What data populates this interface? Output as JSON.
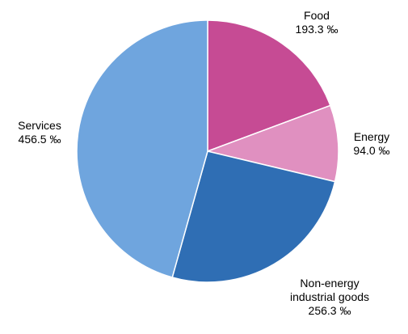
{
  "chart_data": {
    "type": "pie",
    "unit": "‰",
    "slices": [
      {
        "label": [
          "Food"
        ],
        "value": 193.3,
        "value_text": "193.3 ‰",
        "color": "#c64b94"
      },
      {
        "label": [
          "Energy"
        ],
        "value": 94.0,
        "value_text": "94.0 ‰",
        "color": "#e090c0"
      },
      {
        "label": [
          "Non-energy",
          "industrial goods"
        ],
        "value": 256.3,
        "value_text": "256.3 ‰",
        "color": "#2f6eb4"
      },
      {
        "label": [
          "Services"
        ],
        "value": 456.5,
        "value_text": "456.5 ‰",
        "color": "#6fa5de"
      }
    ],
    "start_angle": "12 o'clock",
    "direction": "clockwise",
    "legend": "none"
  }
}
